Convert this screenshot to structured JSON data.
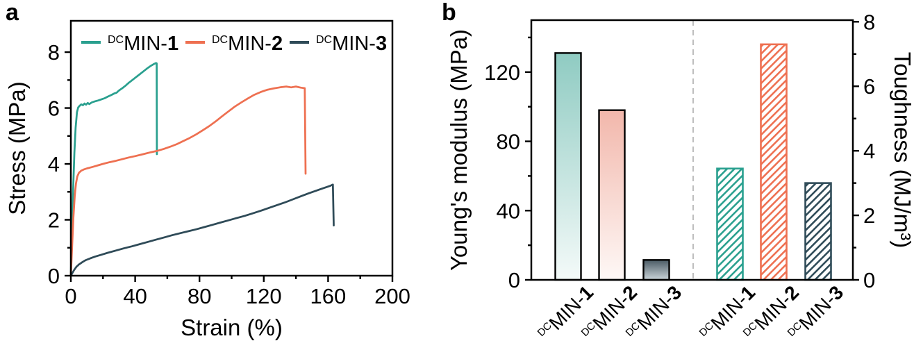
{
  "panels": [
    {
      "letter": "a"
    },
    {
      "letter": "b"
    }
  ],
  "chart_data": [
    {
      "type": "line",
      "title": "",
      "xlabel": "Strain (%)",
      "ylabel": "Stress (MPa)",
      "xlim": [
        0,
        200
      ],
      "ylim": [
        0,
        9.12
      ],
      "xticks": [
        0,
        40,
        80,
        120,
        160,
        200
      ],
      "yticks": [
        0,
        2,
        4,
        6,
        8
      ],
      "x_minor_step": 20,
      "y_minor_step": 1,
      "legend_position": "top-inside",
      "series": [
        {
          "name": "DCMIN-1",
          "label_parts": {
            "sup": "DC",
            "main": "MIN-",
            "bold": "1"
          },
          "color": "#2AA08F",
          "points": [
            [
              0,
              0
            ],
            [
              0.7,
              1.5
            ],
            [
              1.4,
              3.0
            ],
            [
              2.2,
              4.4
            ],
            [
              3,
              5.3
            ],
            [
              3.8,
              5.85
            ],
            [
              4.6,
              6.02
            ],
            [
              5.5,
              6.08
            ],
            [
              6.5,
              6.13
            ],
            [
              7.5,
              6.1
            ],
            [
              8.5,
              6.16
            ],
            [
              9.5,
              6.12
            ],
            [
              10.5,
              6.18
            ],
            [
              11.5,
              6.14
            ],
            [
              13,
              6.2
            ],
            [
              15,
              6.24
            ],
            [
              17,
              6.27
            ],
            [
              19,
              6.31
            ],
            [
              21,
              6.35
            ],
            [
              23,
              6.41
            ],
            [
              25,
              6.46
            ],
            [
              27,
              6.52
            ],
            [
              28.5,
              6.55
            ],
            [
              30,
              6.63
            ],
            [
              32,
              6.71
            ],
            [
              34,
              6.8
            ],
            [
              36,
              6.9
            ],
            [
              38,
              6.99
            ],
            [
              40,
              7.08
            ],
            [
              42,
              7.17
            ],
            [
              44,
              7.26
            ],
            [
              46,
              7.35
            ],
            [
              48,
              7.44
            ],
            [
              50,
              7.52
            ],
            [
              51.5,
              7.57
            ],
            [
              53,
              7.61
            ],
            [
              53.4,
              7.6
            ],
            [
              53.5,
              4.35
            ]
          ]
        },
        {
          "name": "DCMIN-2",
          "label_parts": {
            "sup": "DC",
            "main": "MIN-",
            "bold": "2"
          },
          "color": "#EE7051",
          "points": [
            [
              0,
              0
            ],
            [
              0.8,
              1.1
            ],
            [
              1.6,
              2.1
            ],
            [
              2.4,
              2.85
            ],
            [
              3.2,
              3.3
            ],
            [
              4,
              3.55
            ],
            [
              5,
              3.68
            ],
            [
              6.5,
              3.76
            ],
            [
              8,
              3.8
            ],
            [
              10,
              3.84
            ],
            [
              12,
              3.87
            ],
            [
              14,
              3.9
            ],
            [
              17,
              3.95
            ],
            [
              20,
              4.0
            ],
            [
              24,
              4.06
            ],
            [
              28,
              4.11
            ],
            [
              32,
              4.17
            ],
            [
              36,
              4.23
            ],
            [
              40,
              4.28
            ],
            [
              45,
              4.35
            ],
            [
              50,
              4.42
            ],
            [
              54,
              4.47
            ],
            [
              58,
              4.54
            ],
            [
              62,
              4.62
            ],
            [
              66,
              4.71
            ],
            [
              70,
              4.82
            ],
            [
              74,
              4.93
            ],
            [
              78,
              5.06
            ],
            [
              82,
              5.2
            ],
            [
              86,
              5.35
            ],
            [
              90,
              5.52
            ],
            [
              94,
              5.7
            ],
            [
              98,
              5.88
            ],
            [
              102,
              6.05
            ],
            [
              106,
              6.2
            ],
            [
              110,
              6.34
            ],
            [
              114,
              6.47
            ],
            [
              118,
              6.57
            ],
            [
              122,
              6.65
            ],
            [
              126,
              6.7
            ],
            [
              130,
              6.74
            ],
            [
              134,
              6.77
            ],
            [
              137,
              6.74
            ],
            [
              140,
              6.77
            ],
            [
              143,
              6.73
            ],
            [
              145.5,
              6.71
            ],
            [
              146,
              3.65
            ]
          ]
        },
        {
          "name": "DCMIN-3",
          "label_parts": {
            "sup": "DC",
            "main": "MIN-",
            "bold": "3"
          },
          "color": "#2F4B58",
          "points": [
            [
              0,
              0
            ],
            [
              1,
              0.1
            ],
            [
              2,
              0.2
            ],
            [
              3.5,
              0.32
            ],
            [
              5,
              0.4
            ],
            [
              7,
              0.48
            ],
            [
              9,
              0.55
            ],
            [
              12,
              0.62
            ],
            [
              15,
              0.68
            ],
            [
              19,
              0.75
            ],
            [
              23,
              0.82
            ],
            [
              28,
              0.9
            ],
            [
              33,
              0.98
            ],
            [
              38,
              1.05
            ],
            [
              43,
              1.13
            ],
            [
              48,
              1.21
            ],
            [
              53,
              1.29
            ],
            [
              58,
              1.37
            ],
            [
              63,
              1.45
            ],
            [
              68,
              1.52
            ],
            [
              73,
              1.59
            ],
            [
              78,
              1.66
            ],
            [
              83,
              1.74
            ],
            [
              88,
              1.82
            ],
            [
              93,
              1.9
            ],
            [
              98,
              1.98
            ],
            [
              103,
              2.06
            ],
            [
              108,
              2.14
            ],
            [
              113,
              2.23
            ],
            [
              118,
              2.32
            ],
            [
              123,
              2.42
            ],
            [
              128,
              2.52
            ],
            [
              133,
              2.62
            ],
            [
              138,
              2.73
            ],
            [
              143,
              2.84
            ],
            [
              148,
              2.95
            ],
            [
              152,
              3.03
            ],
            [
              156,
              3.11
            ],
            [
              159,
              3.17
            ],
            [
              161.5,
              3.22
            ],
            [
              163,
              3.26
            ],
            [
              163.5,
              1.8
            ]
          ]
        }
      ]
    },
    {
      "type": "bar",
      "title": "",
      "categories": [
        "DCMIN-1",
        "DCMIN-2",
        "DCMIN-3"
      ],
      "category_label_parts": [
        {
          "sup": "DC",
          "main": "MIN-",
          "bold": "1"
        },
        {
          "sup": "DC",
          "main": "MIN-",
          "bold": "2"
        },
        {
          "sup": "DC",
          "main": "MIN-",
          "bold": "3"
        }
      ],
      "left_axis": {
        "label": "Young's modulus (MPa)",
        "ticks": [
          0,
          40,
          80,
          120
        ],
        "minor_ticks": [
          20,
          60,
          100,
          140
        ],
        "max": 150
      },
      "right_axis": {
        "label": "Toughness (MJ/m³)",
        "ticks": [
          0,
          2,
          4,
          6,
          8
        ],
        "minor_ticks": [
          1,
          3,
          5,
          7
        ],
        "max": 8.05
      },
      "divider_color": "#ADADAD",
      "series": [
        {
          "name": "Young's modulus",
          "axis": "left",
          "bar_style": "gradient",
          "values": [
            131,
            98,
            11.5
          ],
          "bar_fills": [
            {
              "top": "#8FCBC2",
              "bottom": "#F4FAF9"
            },
            {
              "top": "#F2B7AB",
              "bottom": "#FEF8F6"
            },
            {
              "top": "#4A5A64",
              "bottom": "#CBD5DA"
            }
          ],
          "border_color": "#000000"
        },
        {
          "name": "Toughness",
          "axis": "right",
          "bar_style": "hatched",
          "values": [
            3.45,
            7.3,
            3.0
          ],
          "colors": [
            "#2AA08F",
            "#EE7051",
            "#2F4B58"
          ]
        }
      ]
    }
  ]
}
